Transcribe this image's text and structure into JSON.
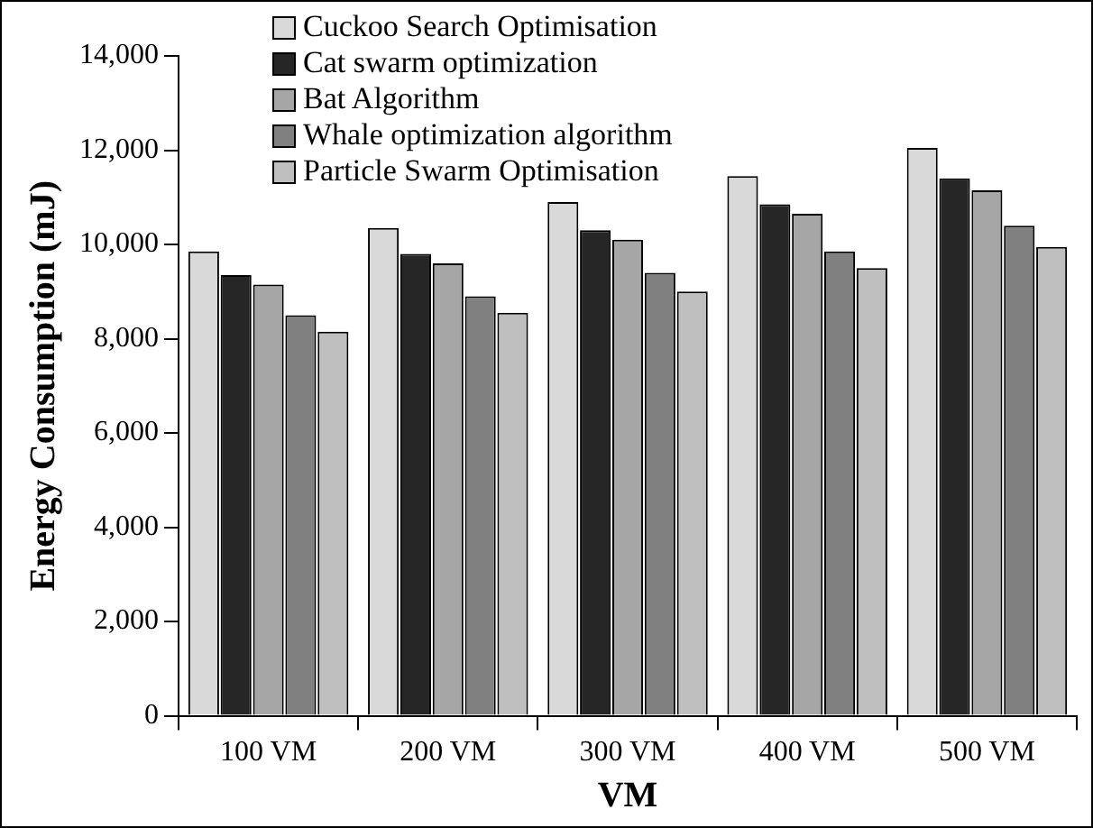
{
  "chart_data": {
    "type": "bar",
    "xlabel": "VM",
    "ylabel": "Energy Consumption (mJ)",
    "categories": [
      "100 VM",
      "200 VM",
      "300 VM",
      "400 VM",
      "500 VM"
    ],
    "series": [
      {
        "name": "Cuckoo Search Optimisation",
        "color": "#d9d9d9",
        "values": [
          9850,
          10350,
          10900,
          11450,
          12050
        ]
      },
      {
        "name": "Cat swarm optimization",
        "color": "#262626",
        "values": [
          9350,
          9800,
          10300,
          10850,
          11400
        ]
      },
      {
        "name": "Bat Algorithm",
        "color": "#a6a6a6",
        "values": [
          9150,
          9600,
          10100,
          10650,
          11150
        ]
      },
      {
        "name": "Whale optimization algorithm",
        "color": "#808080",
        "values": [
          8500,
          8900,
          9400,
          9850,
          10400
        ]
      },
      {
        "name": "Particle Swarm Optimisation",
        "color": "#bfbfbf",
        "values": [
          8150,
          8550,
          9000,
          9500,
          9950
        ]
      }
    ],
    "ylim": [
      0,
      14000
    ],
    "yticks": [
      {
        "value": 0,
        "label": "0"
      },
      {
        "value": 2000,
        "label": "2,000"
      },
      {
        "value": 4000,
        "label": "4,000"
      },
      {
        "value": 6000,
        "label": "6,000"
      },
      {
        "value": 8000,
        "label": "8,000"
      },
      {
        "value": 10000,
        "label": "10,000"
      },
      {
        "value": 12000,
        "label": "12,000"
      },
      {
        "value": 14000,
        "label": "14,000"
      }
    ],
    "grid": false,
    "legend": "top left"
  }
}
